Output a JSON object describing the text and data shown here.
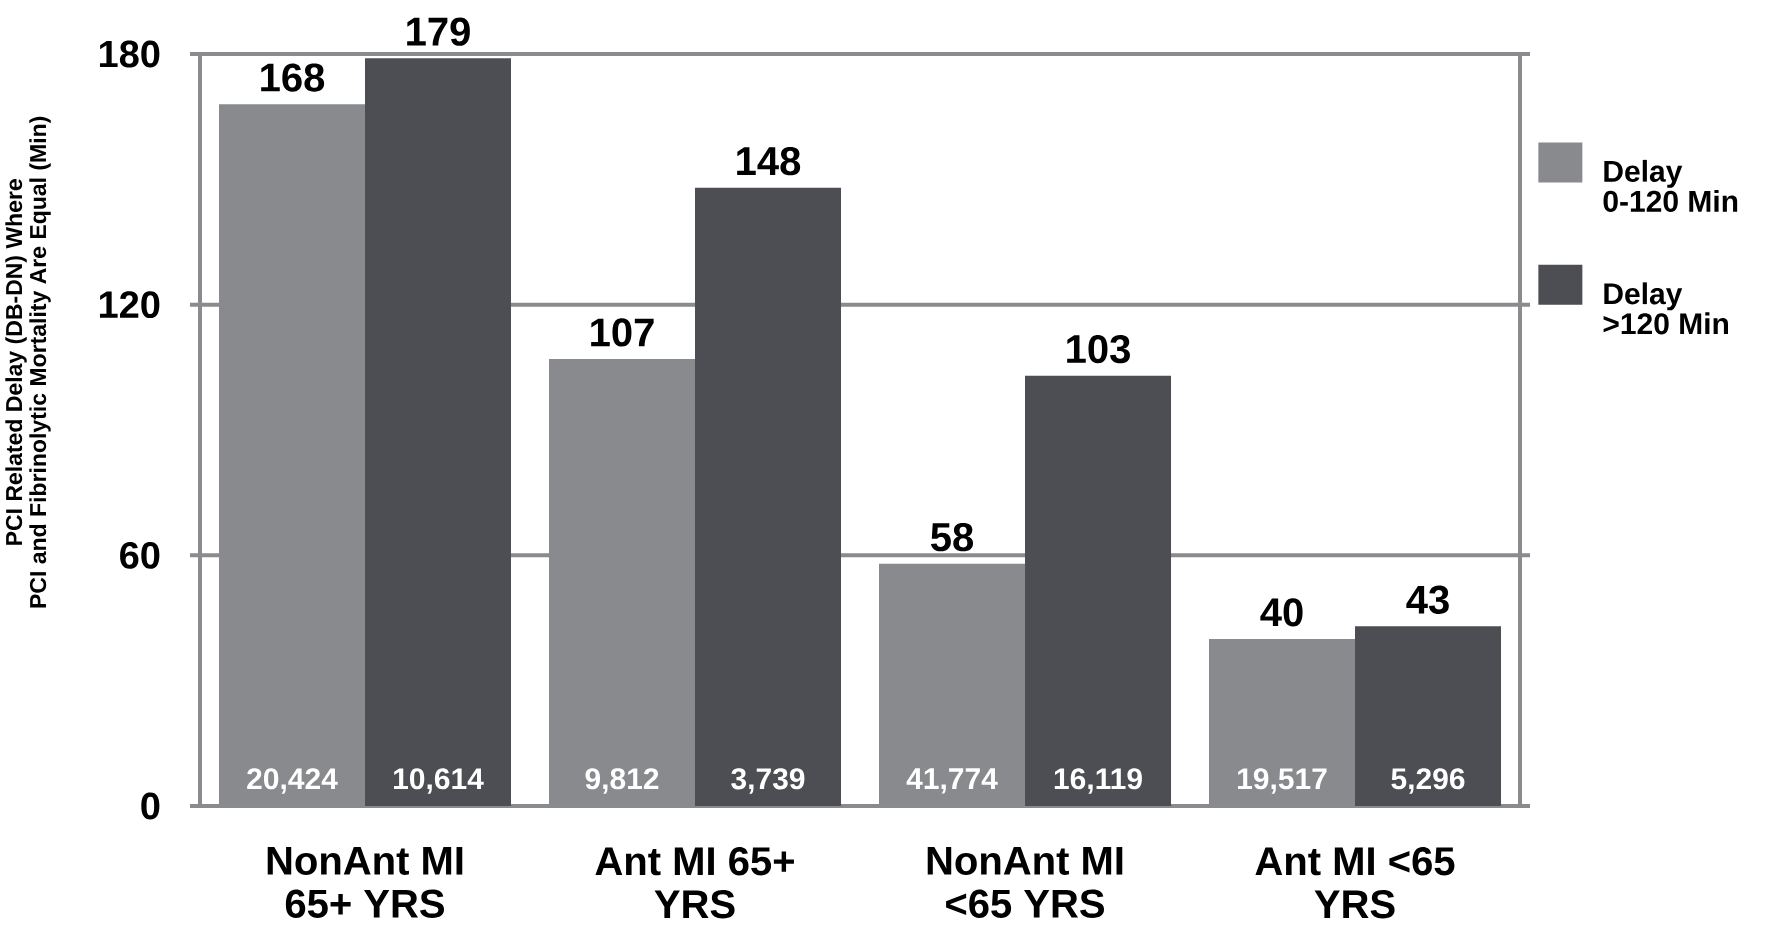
{
  "chart_data": {
    "type": "bar",
    "ylabel": "PCI Related Delay (DB-DN) Where PCI and Fibrinolytic Mortality Are Equal (Min)",
    "categories": [
      "NonAnt MI 65+ YRS",
      "Ant MI 65+ YRS",
      "NonAnt MI <65 YRS",
      "Ant MI <65 YRS"
    ],
    "series": [
      {
        "name": "Delay 0-120 Min",
        "color": "#898a8e",
        "values": [
          168,
          107,
          58,
          40
        ]
      },
      {
        "name": "Delay >120 Min",
        "color": "#4d4e53",
        "values": [
          179,
          148,
          103,
          43
        ]
      }
    ],
    "ylim": [
      0,
      180
    ],
    "yticks": [
      0,
      60,
      120,
      180
    ],
    "grid": "y",
    "legend": "right",
    "data_labels": true,
    "annotations": [
      {
        "text": "20,424",
        "x": "NonAnt MI 65+ YRS",
        "y": 6
      },
      {
        "text": "10,614",
        "x": "NonAnt MI 65+ YRS",
        "y": 6
      },
      {
        "text": "9,812",
        "x": "Ant MI 65+ YRS",
        "y": 6
      },
      {
        "text": "3,739",
        "x": "Ant MI 65+ YRS",
        "y": 6
      },
      {
        "text": "41,774",
        "x": "NonAnt MI <65 YRS",
        "y": 6
      },
      {
        "text": "16,119",
        "x": "NonAnt MI <65 YRS",
        "y": 6
      },
      {
        "text": "19,517",
        "x": "Ant MI <65 YRS",
        "y": 6
      },
      {
        "text": "5,296",
        "x": "Ant MI <65 YRS",
        "y": 6
      }
    ]
  }
}
